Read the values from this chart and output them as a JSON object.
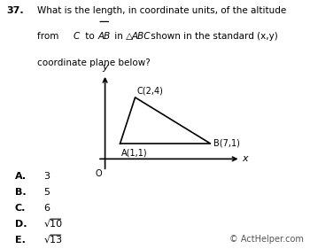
{
  "title_number": "37.",
  "question_line1": "What is the length, in coordinate units, of the altitude",
  "question_line2_parts": [
    "from ",
    "C",
    " to ",
    "AB",
    " in △",
    "ABC",
    " shown in the standard (x,y)"
  ],
  "question_line3": "coordinate plane below?",
  "triangle_vertices": {
    "A": [
      1,
      1
    ],
    "B": [
      7,
      1
    ],
    "C": [
      2,
      4
    ]
  },
  "axis_origin_label": "O",
  "choices": [
    {
      "letter": "A.",
      "value": "3"
    },
    {
      "letter": "B.",
      "value": "5"
    },
    {
      "letter": "C.",
      "value": "6"
    },
    {
      "letter": "D.",
      "value": "√10"
    },
    {
      "letter": "E.",
      "value": "√13"
    }
  ],
  "copyright": "© ActHelper.com",
  "bg_color": "#ffffff",
  "text_color": "#000000",
  "triangle_color": "#000000",
  "axis_color": "#000000"
}
